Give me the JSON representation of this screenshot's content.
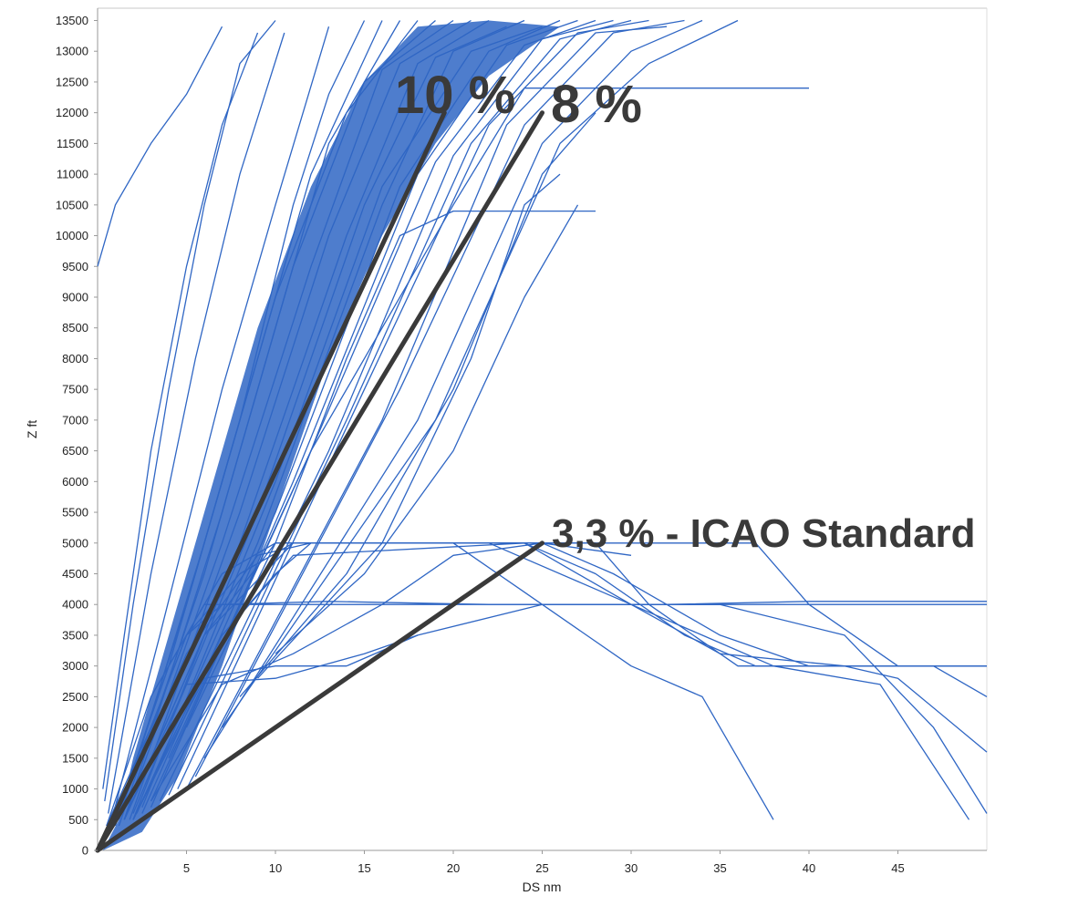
{
  "chart_data": {
    "type": "line",
    "xlabel": "DS nm",
    "ylabel": "Z ft",
    "xlim": [
      0,
      50
    ],
    "ylim": [
      0,
      13700
    ],
    "x_ticks": [
      5,
      10,
      15,
      20,
      25,
      30,
      35,
      40,
      45
    ],
    "y_ticks": [
      0,
      500,
      1000,
      1500,
      2000,
      2500,
      3000,
      3500,
      4000,
      4500,
      5000,
      5500,
      6000,
      6500,
      7000,
      7500,
      8000,
      8500,
      9000,
      9500,
      10000,
      10500,
      11000,
      11500,
      12000,
      12500,
      13000,
      13500
    ],
    "grid": false,
    "trajectory_color": "#2f66c4",
    "annotation_color": "#3a3a3a",
    "reference_lines": [
      {
        "label": "10 %",
        "points": [
          [
            0,
            0
          ],
          [
            19.5,
            12000
          ]
        ]
      },
      {
        "label": "8 %",
        "points": [
          [
            0,
            0
          ],
          [
            25,
            12000
          ]
        ]
      },
      {
        "label": "3,3 % - ICAO Standard",
        "points": [
          [
            0,
            0
          ],
          [
            25,
            5000
          ]
        ]
      }
    ],
    "trajectories": [
      [
        [
          0,
          9500
        ],
        [
          1,
          10500
        ],
        [
          3,
          11500
        ],
        [
          5,
          12300
        ],
        [
          7,
          13400
        ]
      ],
      [
        [
          0.3,
          1000
        ],
        [
          1.5,
          3500
        ],
        [
          3,
          6500
        ],
        [
          5,
          9500
        ],
        [
          7,
          11800
        ],
        [
          9,
          13300
        ]
      ],
      [
        [
          0.4,
          800
        ],
        [
          2,
          4000
        ],
        [
          4,
          7500
        ],
        [
          6,
          10500
        ],
        [
          8,
          12800
        ],
        [
          10,
          13500
        ]
      ],
      [
        [
          0.6,
          600
        ],
        [
          3,
          4500
        ],
        [
          5.5,
          8000
        ],
        [
          8,
          11000
        ],
        [
          10.5,
          13300
        ]
      ],
      [
        [
          0.8,
          500
        ],
        [
          3.5,
          3500
        ],
        [
          7,
          7500
        ],
        [
          10,
          10500
        ],
        [
          13,
          13400
        ]
      ],
      [
        [
          1,
          500
        ],
        [
          4,
          3000
        ],
        [
          8,
          7000
        ],
        [
          11,
          10500
        ],
        [
          13,
          12300
        ],
        [
          15,
          13500
        ]
      ],
      [
        [
          1,
          400
        ],
        [
          5,
          4000
        ],
        [
          9,
          8000
        ],
        [
          12,
          11000
        ],
        [
          16,
          13500
        ]
      ],
      [
        [
          1.2,
          400
        ],
        [
          6,
          4500
        ],
        [
          10,
          8500
        ],
        [
          13,
          11500
        ],
        [
          17,
          13500
        ]
      ],
      [
        [
          1.2,
          500
        ],
        [
          6,
          5000
        ],
        [
          10,
          9000
        ],
        [
          14,
          12000
        ],
        [
          18,
          13500
        ]
      ],
      [
        [
          1.5,
          500
        ],
        [
          7,
          5500
        ],
        [
          11,
          9500
        ],
        [
          15,
          12500
        ],
        [
          19,
          13500
        ]
      ],
      [
        [
          1.5,
          500
        ],
        [
          7,
          5000
        ],
        [
          12,
          9500
        ],
        [
          16,
          12700
        ],
        [
          20,
          13500
        ]
      ],
      [
        [
          1.8,
          500
        ],
        [
          8,
          5500
        ],
        [
          13,
          10000
        ],
        [
          17,
          12800
        ],
        [
          21,
          13500
        ]
      ],
      [
        [
          2,
          500
        ],
        [
          8,
          5000
        ],
        [
          14,
          10000
        ],
        [
          18,
          12800
        ],
        [
          22,
          13500
        ]
      ],
      [
        [
          2,
          600
        ],
        [
          9,
          5500
        ],
        [
          15,
          10500
        ],
        [
          19,
          12900
        ],
        [
          23,
          13400
        ]
      ],
      [
        [
          2.2,
          600
        ],
        [
          9,
          5000
        ],
        [
          16,
          10500
        ],
        [
          20,
          13000
        ],
        [
          24,
          13500
        ]
      ],
      [
        [
          2.5,
          700
        ],
        [
          10,
          6000
        ],
        [
          16,
          10800
        ],
        [
          21,
          13000
        ],
        [
          25,
          13400
        ]
      ],
      [
        [
          2.5,
          600
        ],
        [
          10,
          5500
        ],
        [
          17,
          10800
        ],
        [
          22,
          13000
        ],
        [
          26,
          13500
        ]
      ],
      [
        [
          3,
          700
        ],
        [
          11,
          6000
        ],
        [
          18,
          11000
        ],
        [
          23,
          13100
        ],
        [
          27,
          13500
        ]
      ],
      [
        [
          3,
          800
        ],
        [
          12,
          6500
        ],
        [
          19,
          11200
        ],
        [
          24,
          13100
        ],
        [
          28,
          13500
        ]
      ],
      [
        [
          3.5,
          800
        ],
        [
          13,
          6500
        ],
        [
          20,
          11300
        ],
        [
          25,
          13200
        ],
        [
          29,
          13500
        ]
      ],
      [
        [
          4,
          900
        ],
        [
          14,
          7000
        ],
        [
          21,
          11500
        ],
        [
          26,
          13200
        ],
        [
          30,
          13500
        ]
      ],
      [
        [
          4.5,
          1000
        ],
        [
          15,
          7500
        ],
        [
          22,
          11800
        ],
        [
          27,
          13300
        ],
        [
          31,
          13500
        ]
      ],
      [
        [
          5,
          1000
        ],
        [
          16,
          7000
        ],
        [
          23,
          11800
        ],
        [
          28,
          13300
        ],
        [
          32,
          13400
        ]
      ],
      [
        [
          5.5,
          1200
        ],
        [
          17,
          7500
        ],
        [
          24,
          11800
        ],
        [
          29,
          13300
        ],
        [
          33,
          13500
        ]
      ],
      [
        [
          6,
          1500
        ],
        [
          18,
          7000
        ],
        [
          25,
          11500
        ],
        [
          30,
          13000
        ],
        [
          34,
          13500
        ]
      ],
      [
        [
          7,
          2000
        ],
        [
          19,
          7000
        ],
        [
          26,
          11500
        ],
        [
          31,
          12800
        ],
        [
          36,
          13500
        ]
      ],
      [
        [
          8,
          2500
        ],
        [
          14,
          4500
        ],
        [
          20,
          7500
        ],
        [
          25,
          11000
        ],
        [
          28,
          12000
        ]
      ],
      [
        [
          9,
          2800
        ],
        [
          16,
          5000
        ],
        [
          21,
          8000
        ],
        [
          24,
          10500
        ],
        [
          26,
          11000
        ]
      ],
      [
        [
          10,
          3200
        ],
        [
          15,
          4500
        ],
        [
          20,
          6500
        ],
        [
          24,
          9000
        ],
        [
          27,
          10500
        ]
      ],
      [
        [
          4,
          1500
        ],
        [
          8,
          4000
        ],
        [
          12,
          6500
        ],
        [
          16,
          8500
        ],
        [
          20,
          10500
        ],
        [
          24,
          12400
        ],
        [
          40,
          12400
        ]
      ],
      [
        [
          5,
          2000
        ],
        [
          10,
          5000
        ],
        [
          14,
          8000
        ],
        [
          17,
          10000
        ],
        [
          20,
          10400
        ],
        [
          28,
          10400
        ]
      ],
      [
        [
          0.5,
          400
        ],
        [
          3,
          2500
        ],
        [
          6,
          4000
        ],
        [
          8,
          4000
        ],
        [
          18,
          4000
        ],
        [
          25,
          4000
        ],
        [
          35,
          4000
        ],
        [
          50,
          4000
        ]
      ],
      [
        [
          0.5,
          400
        ],
        [
          3,
          2000
        ],
        [
          5,
          3500
        ],
        [
          7,
          4000
        ],
        [
          13,
          4050
        ],
        [
          22,
          4000
        ],
        [
          32,
          4000
        ],
        [
          40,
          4050
        ],
        [
          50,
          4050
        ]
      ],
      [
        [
          1,
          500
        ],
        [
          4,
          3000
        ],
        [
          7,
          4500
        ],
        [
          10,
          5000
        ],
        [
          20,
          5000
        ],
        [
          30,
          5000
        ],
        [
          37,
          5000
        ],
        [
          40,
          4000
        ],
        [
          45,
          3000
        ],
        [
          50,
          3000
        ]
      ],
      [
        [
          1,
          500
        ],
        [
          5,
          3500
        ],
        [
          8,
          4500
        ],
        [
          11,
          5000
        ],
        [
          22,
          5000
        ],
        [
          28,
          5000
        ],
        [
          31,
          4000
        ],
        [
          36,
          3000
        ],
        [
          50,
          3000
        ]
      ],
      [
        [
          1,
          500
        ],
        [
          5,
          3200
        ],
        [
          9,
          4800
        ],
        [
          12,
          5000
        ],
        [
          24,
          5000
        ],
        [
          28,
          4500
        ],
        [
          33,
          3500
        ],
        [
          37,
          3000
        ],
        [
          50,
          3000
        ]
      ],
      [
        [
          1.5,
          500
        ],
        [
          6,
          3500
        ],
        [
          10,
          5000
        ],
        [
          25,
          5000
        ],
        [
          29,
          4500
        ],
        [
          35,
          3500
        ],
        [
          40,
          3000
        ],
        [
          47,
          3000
        ],
        [
          50,
          2500
        ]
      ],
      [
        [
          1.5,
          500
        ],
        [
          6,
          3500
        ],
        [
          11,
          5000
        ],
        [
          20,
          5000
        ],
        [
          24,
          4200
        ],
        [
          30,
          3000
        ],
        [
          34,
          2500
        ],
        [
          38,
          500
        ]
      ],
      [
        [
          2,
          500
        ],
        [
          7,
          3500
        ],
        [
          10,
          4500
        ],
        [
          12,
          5000
        ],
        [
          22,
          5000
        ],
        [
          30,
          4000
        ],
        [
          34,
          3500
        ],
        [
          38,
          3000
        ],
        [
          44,
          2700
        ],
        [
          49,
          500
        ]
      ],
      [
        [
          2,
          500
        ],
        [
          7,
          3500
        ],
        [
          11,
          4800
        ],
        [
          24,
          5000
        ],
        [
          30,
          4000
        ],
        [
          35,
          3200
        ],
        [
          42,
          3000
        ],
        [
          45,
          2800
        ],
        [
          50,
          1600
        ]
      ],
      [
        [
          2,
          500
        ],
        [
          6,
          2800
        ],
        [
          10,
          3000
        ],
        [
          14,
          3000
        ],
        [
          18,
          3500
        ],
        [
          25,
          4000
        ],
        [
          30,
          4000
        ],
        [
          35,
          4000
        ],
        [
          42,
          3500
        ],
        [
          47,
          2000
        ],
        [
          50,
          600
        ]
      ],
      [
        [
          1.5,
          500
        ],
        [
          5,
          2700
        ],
        [
          10,
          2800
        ],
        [
          15,
          3200
        ],
        [
          18,
          3500
        ]
      ],
      [
        [
          3,
          800
        ],
        [
          7,
          2700
        ],
        [
          11,
          3200
        ],
        [
          16,
          4000
        ],
        [
          20,
          4800
        ],
        [
          25,
          5000
        ],
        [
          30,
          4800
        ]
      ]
    ]
  }
}
